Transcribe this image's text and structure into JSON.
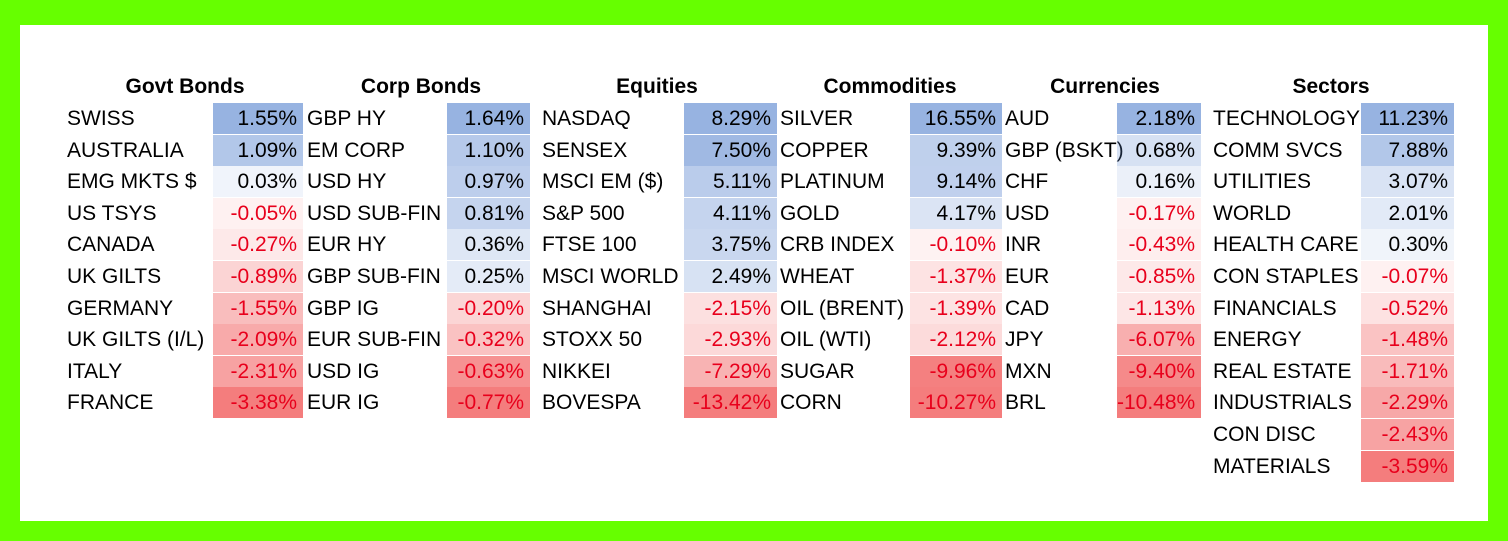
{
  "colors": {
    "page_border": "#66ff00",
    "positive": "#000000",
    "negative": "#e8001c",
    "pos_heat": "#5b86cf",
    "neg_heat": "#ee3a3a"
  },
  "groups": [
    {
      "title": "Govt Bonds",
      "rows": [
        {
          "label": "SWISS",
          "value": "1.55%",
          "num": 1.55
        },
        {
          "label": "AUSTRALIA",
          "value": "1.09%",
          "num": 1.09
        },
        {
          "label": "EMG MKTS $",
          "value": "0.03%",
          "num": 0.03
        },
        {
          "label": "US TSYS",
          "value": "-0.05%",
          "num": -0.05
        },
        {
          "label": "CANADA",
          "value": "-0.27%",
          "num": -0.27
        },
        {
          "label": "UK GILTS",
          "value": "-0.89%",
          "num": -0.89
        },
        {
          "label": "GERMANY",
          "value": "-1.55%",
          "num": -1.55
        },
        {
          "label": "UK GILTS (I/L)",
          "value": "-2.09%",
          "num": -2.09
        },
        {
          "label": "ITALY",
          "value": "-2.31%",
          "num": -2.31
        },
        {
          "label": "FRANCE",
          "value": "-3.38%",
          "num": -3.38
        }
      ]
    },
    {
      "title": "Corp Bonds",
      "rows": [
        {
          "label": "GBP HY",
          "value": "1.64%",
          "num": 1.64
        },
        {
          "label": "EM CORP",
          "value": "1.10%",
          "num": 1.1
        },
        {
          "label": "USD HY",
          "value": "0.97%",
          "num": 0.97
        },
        {
          "label": "USD SUB-FIN",
          "value": "0.81%",
          "num": 0.81
        },
        {
          "label": "EUR HY",
          "value": "0.36%",
          "num": 0.36
        },
        {
          "label": "GBP SUB-FIN",
          "value": "0.25%",
          "num": 0.25
        },
        {
          "label": "GBP IG",
          "value": "-0.20%",
          "num": -0.2
        },
        {
          "label": "EUR SUB-FIN",
          "value": "-0.32%",
          "num": -0.32
        },
        {
          "label": "USD IG",
          "value": "-0.63%",
          "num": -0.63
        },
        {
          "label": "EUR IG",
          "value": "-0.77%",
          "num": -0.77
        }
      ]
    },
    {
      "title": "Equities",
      "rows": [
        {
          "label": "NASDAQ",
          "value": "8.29%",
          "num": 8.29
        },
        {
          "label": "SENSEX",
          "value": "7.50%",
          "num": 7.5
        },
        {
          "label": "MSCI EM ($)",
          "value": "5.11%",
          "num": 5.11
        },
        {
          "label": "S&P 500",
          "value": "4.11%",
          "num": 4.11
        },
        {
          "label": "FTSE 100",
          "value": "3.75%",
          "num": 3.75
        },
        {
          "label": "MSCI WORLD",
          "value": "2.49%",
          "num": 2.49
        },
        {
          "label": "SHANGHAI",
          "value": "-2.15%",
          "num": -2.15
        },
        {
          "label": "STOXX 50",
          "value": "-2.93%",
          "num": -2.93
        },
        {
          "label": "NIKKEI",
          "value": "-7.29%",
          "num": -7.29
        },
        {
          "label": "BOVESPA",
          "value": "-13.42%",
          "num": -13.42
        }
      ]
    },
    {
      "title": "Commodities",
      "rows": [
        {
          "label": "SILVER",
          "value": "16.55%",
          "num": 16.55
        },
        {
          "label": "COPPER",
          "value": "9.39%",
          "num": 9.39
        },
        {
          "label": "PLATINUM",
          "value": "9.14%",
          "num": 9.14
        },
        {
          "label": "GOLD",
          "value": "4.17%",
          "num": 4.17
        },
        {
          "label": "CRB INDEX",
          "value": "-0.10%",
          "num": -0.1
        },
        {
          "label": "WHEAT",
          "value": "-1.37%",
          "num": -1.37
        },
        {
          "label": "OIL (BRENT)",
          "value": "-1.39%",
          "num": -1.39
        },
        {
          "label": "OIL (WTI)",
          "value": "-2.12%",
          "num": -2.12
        },
        {
          "label": "SUGAR",
          "value": "-9.96%",
          "num": -9.96
        },
        {
          "label": "CORN",
          "value": "-10.27%",
          "num": -10.27
        }
      ]
    },
    {
      "title": "Currencies",
      "rows": [
        {
          "label": "AUD",
          "value": "2.18%",
          "num": 2.18
        },
        {
          "label": "GBP (BSKT)",
          "value": "0.68%",
          "num": 0.68
        },
        {
          "label": "CHF",
          "value": "0.16%",
          "num": 0.16
        },
        {
          "label": "USD",
          "value": "-0.17%",
          "num": -0.17
        },
        {
          "label": "INR",
          "value": "-0.43%",
          "num": -0.43
        },
        {
          "label": "EUR",
          "value": "-0.85%",
          "num": -0.85
        },
        {
          "label": "CAD",
          "value": "-1.13%",
          "num": -1.13
        },
        {
          "label": "JPY",
          "value": "-6.07%",
          "num": -6.07
        },
        {
          "label": "MXN",
          "value": "-9.40%",
          "num": -9.4
        },
        {
          "label": "BRL",
          "value": "-10.48%",
          "num": -10.48
        }
      ]
    },
    {
      "title": "Sectors",
      "rows": [
        {
          "label": "TECHNOLOGY",
          "value": "11.23%",
          "num": 11.23
        },
        {
          "label": "COMM SVCS",
          "value": "7.88%",
          "num": 7.88
        },
        {
          "label": "UTILITIES",
          "value": "3.07%",
          "num": 3.07
        },
        {
          "label": "WORLD",
          "value": "2.01%",
          "num": 2.01
        },
        {
          "label": "HEALTH CARE",
          "value": "0.30%",
          "num": 0.3
        },
        {
          "label": "CON STAPLES",
          "value": "-0.07%",
          "num": -0.07
        },
        {
          "label": "FINANCIALS",
          "value": "-0.52%",
          "num": -0.52
        },
        {
          "label": "ENERGY",
          "value": "-1.48%",
          "num": -1.48
        },
        {
          "label": "REAL ESTATE",
          "value": "-1.71%",
          "num": -1.71
        },
        {
          "label": "INDUSTRIALS",
          "value": "-2.29%",
          "num": -2.29
        },
        {
          "label": "CON DISC",
          "value": "-2.43%",
          "num": -2.43
        },
        {
          "label": "MATERIALS",
          "value": "-3.59%",
          "num": -3.59
        }
      ]
    }
  ]
}
